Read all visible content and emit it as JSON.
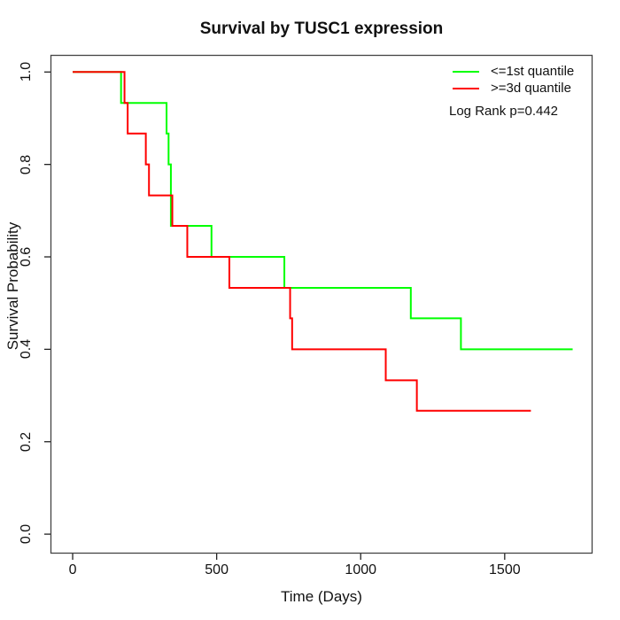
{
  "title": "Survival by TUSC1 expression",
  "xlabel": "Time (Days)",
  "ylabel": "Survival Probability",
  "legend": {
    "items": [
      {
        "label": "<=1st quantile",
        "color": "#00ff00"
      },
      {
        "label": ">=3d quantile",
        "color": "#ff0000"
      }
    ],
    "note": "Log Rank p=0.442"
  },
  "chart_data": {
    "type": "line",
    "subtype": "kaplan-meier-step",
    "title": "Survival by TUSC1 expression",
    "xlabel": "Time (Days)",
    "ylabel": "Survival Probability",
    "xlim": [
      -77,
      1805
    ],
    "ylim": [
      -0.042,
      1.037
    ],
    "xticks": [
      0,
      500,
      1000,
      1500
    ],
    "xtick_labels": [
      "0",
      "500",
      "1000",
      "1500"
    ],
    "yticks": [
      0.0,
      0.2,
      0.4,
      0.6,
      0.8,
      1.0
    ],
    "ytick_labels": [
      "0.0",
      "0.2",
      "0.4",
      "0.6",
      "0.8",
      "1.0"
    ],
    "grid": false,
    "legend_position": "top-right",
    "annotation": "Log Rank p=0.442",
    "box_color": "#444444",
    "line_width": 2,
    "series": [
      {
        "name": "<=1st quantile",
        "color": "#00ff00",
        "start": {
          "time": 0,
          "survival": 1.0
        },
        "event_times": [
          168,
          326,
          333,
          341,
          482,
          735,
          1174,
          1348
        ],
        "survival_after": [
          0.933,
          0.867,
          0.8,
          0.667,
          0.6,
          0.533,
          0.467,
          0.4
        ],
        "end_time": 1736
      },
      {
        "name": ">=3d quantile",
        "color": "#ff0000",
        "start": {
          "time": 0,
          "survival": 1.0
        },
        "event_times": [
          180,
          191,
          254,
          265,
          346,
          398,
          544,
          755,
          762,
          1087,
          1195
        ],
        "survival_after": [
          0.933,
          0.867,
          0.8,
          0.733,
          0.667,
          0.6,
          0.533,
          0.467,
          0.4,
          0.333,
          0.267
        ],
        "end_time": 1591
      }
    ]
  }
}
